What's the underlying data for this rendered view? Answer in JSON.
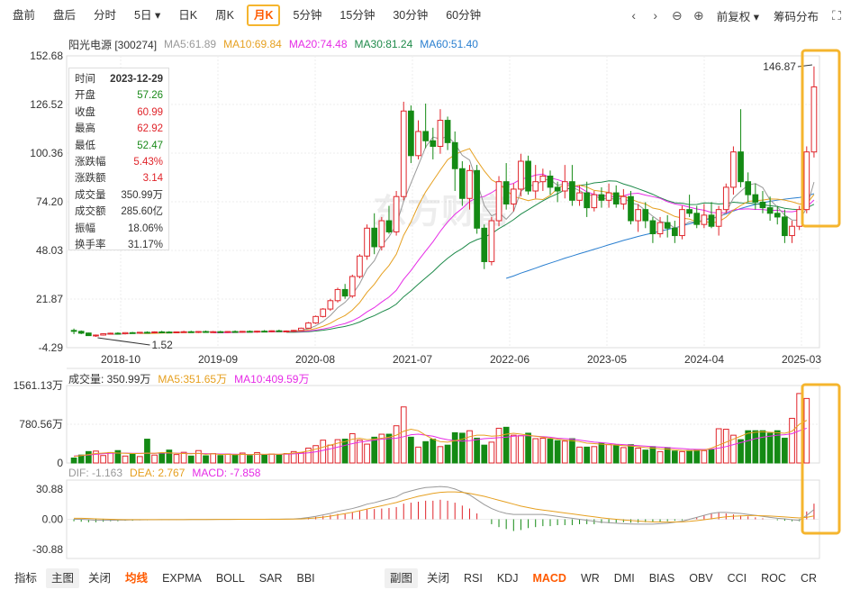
{
  "toolbar": {
    "periods": [
      "盘前",
      "盘后",
      "分时",
      "5日",
      "日K",
      "周K",
      "月K",
      "5分钟",
      "15分钟",
      "30分钟",
      "60分钟"
    ],
    "active_index": 6,
    "dropdown_index": 3,
    "adjust_label": "前复权",
    "chip_label": "筹码分布"
  },
  "legend": {
    "name": "阳光电源 [300274]",
    "ma5": "MA5:61.89",
    "ma10": "MA10:69.84",
    "ma20": "MA20:74.48",
    "ma30": "MA30:81.24",
    "ma60": "MA60:51.40"
  },
  "vol_legend": {
    "vol": "成交量: 350.99万",
    "ma5": "MA5:351.65万",
    "ma10": "MA10:409.59万"
  },
  "macd_legend": {
    "dif": "DIF: -1.163",
    "dea": "DEA: 2.767",
    "macd": "MACD: -7.858"
  },
  "tooltip": [
    {
      "k": "时间",
      "v": "2023-12-29",
      "c": "#333"
    },
    {
      "k": "开盘",
      "v": "57.26",
      "c": "#1a8a1a"
    },
    {
      "k": "收盘",
      "v": "60.99",
      "c": "#e0242a"
    },
    {
      "k": "最高",
      "v": "62.92",
      "c": "#e0242a"
    },
    {
      "k": "最低",
      "v": "52.47",
      "c": "#1a8a1a"
    },
    {
      "k": "涨跌幅",
      "v": "5.43%",
      "c": "#e0242a"
    },
    {
      "k": "涨跌额",
      "v": "3.14",
      "c": "#e0242a"
    },
    {
      "k": "成交量",
      "v": "350.99万",
      "c": "#333"
    },
    {
      "k": "成交额",
      "v": "285.60亿",
      "c": "#333"
    },
    {
      "k": "振幅",
      "v": "18.06%",
      "c": "#333"
    },
    {
      "k": "换手率",
      "v": "31.17%",
      "c": "#333"
    }
  ],
  "watermark": "东方财富",
  "bottom": {
    "left": [
      "指标",
      "主图",
      "关闭",
      "均线",
      "EXPMA",
      "BOLL",
      "SAR",
      "BBI"
    ],
    "right": [
      "副图",
      "关闭",
      "RSI",
      "KDJ",
      "MACD",
      "WR",
      "DMI",
      "BIAS",
      "OBV",
      "CCI",
      "ROC",
      "CR"
    ]
  },
  "colors": {
    "up": "#e0242a",
    "down": "#148a14",
    "ma5": "#999999",
    "ma10": "#e6a020",
    "ma20": "#e62ce6",
    "ma30": "#1e8a4a",
    "ma60": "#2a7fd0",
    "highlight": "#f5b52e"
  },
  "chart_data": {
    "type": "candlestick",
    "price_axis": {
      "labels": [
        "152.68",
        "126.52",
        "100.36",
        "74.20",
        "48.03",
        "21.87",
        "-4.29"
      ],
      "range": [
        -4.29,
        152.68
      ]
    },
    "time_axis": [
      "2018-10",
      "2019-09",
      "2020-08",
      "2021-07",
      "2022-06",
      "2023-05",
      "2024-04",
      "2025-03"
    ],
    "annotations": {
      "max": "146.87",
      "min": "1.52"
    },
    "volume_axis": {
      "labels": [
        "1561.13万",
        "780.56万",
        "0"
      ],
      "max": 1561.13
    },
    "macd_axis": {
      "labels": [
        "30.88",
        "0.00",
        "-30.88"
      ],
      "range": [
        -30.88,
        30.88
      ]
    },
    "candles": [
      [
        5,
        6,
        3,
        4.5
      ],
      [
        4.5,
        5,
        3,
        3.5
      ],
      [
        3.6,
        3.8,
        2,
        2.2
      ],
      [
        2.2,
        2.8,
        1.52,
        2.5
      ],
      [
        2.5,
        3.5,
        2.2,
        3.2
      ],
      [
        3.2,
        3.8,
        2.8,
        3.5
      ],
      [
        3.5,
        4,
        3,
        3.2
      ],
      [
        3.2,
        4,
        2.8,
        3.8
      ],
      [
        3.8,
        4.2,
        3.2,
        3.5
      ],
      [
        3.5,
        4.2,
        3.2,
        4
      ],
      [
        4,
        4.5,
        3.5,
        3.8
      ],
      [
        3.8,
        4.5,
        3.5,
        4.2
      ],
      [
        4.2,
        4.8,
        3.8,
        4.1
      ],
      [
        4.1,
        4.6,
        3.6,
        3.9
      ],
      [
        3.9,
        4.4,
        3.5,
        4.2
      ],
      [
        4.2,
        4.8,
        3.8,
        4.3
      ],
      [
        4.3,
        4.8,
        3.9,
        4
      ],
      [
        4,
        4.6,
        3.6,
        4.4
      ],
      [
        4.4,
        4.9,
        4,
        4.2
      ],
      [
        4.2,
        4.7,
        3.8,
        4.3
      ],
      [
        4.3,
        4.8,
        3.9,
        4.1
      ],
      [
        4.1,
        4.6,
        3.7,
        4.4
      ],
      [
        4.4,
        5,
        4,
        4.2
      ],
      [
        4.2,
        4.7,
        3.8,
        4.5
      ],
      [
        4.5,
        5,
        4,
        4.3
      ],
      [
        4.3,
        4.8,
        3.8,
        4.6
      ],
      [
        4.6,
        5.2,
        4.2,
        4.4
      ],
      [
        4.4,
        5,
        4,
        4.8
      ],
      [
        4.8,
        5.4,
        4.3,
        4.5
      ],
      [
        4.5,
        5,
        4.1,
        4.7
      ],
      [
        4.7,
        5.3,
        4.3,
        5
      ],
      [
        5,
        6.5,
        4.8,
        6.2
      ],
      [
        6.2,
        9.5,
        6,
        9
      ],
      [
        9,
        13,
        8.5,
        12.5
      ],
      [
        12.5,
        17,
        12,
        16.5
      ],
      [
        16.5,
        22,
        15.5,
        21
      ],
      [
        21,
        28,
        20,
        27
      ],
      [
        27,
        30,
        22,
        23.5
      ],
      [
        23.5,
        35,
        22.5,
        34
      ],
      [
        34,
        46,
        33,
        45
      ],
      [
        45,
        62,
        43,
        60
      ],
      [
        60,
        68,
        46,
        50
      ],
      [
        50,
        66,
        48,
        64
      ],
      [
        64,
        72,
        57,
        58
      ],
      [
        58,
        80,
        56,
        77
      ],
      [
        77,
        128,
        75,
        123
      ],
      [
        123,
        126,
        95,
        99
      ],
      [
        99,
        118,
        97,
        112
      ],
      [
        112,
        127,
        103,
        107
      ],
      [
        107,
        114,
        97,
        104
      ],
      [
        104,
        124,
        100,
        118
      ],
      [
        118,
        120,
        102,
        106
      ],
      [
        106,
        112,
        80,
        92
      ],
      [
        92,
        96,
        72,
        76
      ],
      [
        76,
        94,
        70,
        91
      ],
      [
        91,
        94,
        57,
        60
      ],
      [
        60,
        62,
        38,
        42
      ],
      [
        42,
        66,
        40,
        64
      ],
      [
        64,
        88,
        61,
        85
      ],
      [
        85,
        95,
        70,
        73
      ],
      [
        73,
        84,
        69,
        81
      ],
      [
        81,
        100,
        77,
        96
      ],
      [
        96,
        99,
        78,
        80
      ],
      [
        80,
        94,
        76,
        85
      ],
      [
        85,
        92,
        80,
        88
      ],
      [
        88,
        91,
        78,
        82
      ],
      [
        82,
        85,
        74,
        80
      ],
      [
        80,
        94,
        76,
        85
      ],
      [
        85,
        94,
        72,
        75
      ],
      [
        75,
        83,
        72,
        79
      ],
      [
        79,
        85,
        66,
        71
      ],
      [
        71,
        80,
        69,
        78
      ],
      [
        78,
        82,
        71,
        75
      ],
      [
        75,
        84,
        71,
        79
      ],
      [
        79,
        83,
        71,
        73
      ],
      [
        73,
        81,
        70,
        77
      ],
      [
        77,
        80,
        62,
        64
      ],
      [
        64,
        73,
        58,
        70
      ],
      [
        70,
        74,
        60,
        64
      ],
      [
        64,
        66,
        52,
        57
      ],
      [
        57,
        66,
        55,
        63
      ],
      [
        63,
        67,
        55,
        60
      ],
      [
        60,
        64,
        52,
        56
      ],
      [
        56,
        72,
        54,
        70
      ],
      [
        70,
        78,
        66,
        68
      ],
      [
        68,
        72,
        60,
        62
      ],
      [
        62,
        73,
        60,
        67
      ],
      [
        67,
        74,
        60,
        61
      ],
      [
        61,
        72,
        56,
        70
      ],
      [
        70,
        84,
        68,
        82
      ],
      [
        82,
        104,
        78,
        101
      ],
      [
        101,
        124,
        82,
        85
      ],
      [
        85,
        90,
        74,
        78
      ],
      [
        78,
        84,
        70,
        74
      ],
      [
        74,
        80,
        68,
        71
      ],
      [
        71,
        77,
        64,
        68
      ],
      [
        68,
        72,
        62,
        66
      ],
      [
        66,
        70,
        52,
        56
      ],
      [
        56,
        64,
        52,
        61
      ],
      [
        61,
        72,
        59,
        70
      ],
      [
        70,
        104,
        68,
        101
      ],
      [
        101,
        147,
        98,
        136
      ]
    ],
    "volume": [
      100,
      160,
      230,
      240,
      150,
      210,
      250,
      140,
      180,
      130,
      480,
      160,
      185,
      260,
      170,
      215,
      140,
      250,
      145,
      190,
      150,
      180,
      160,
      200,
      150,
      210,
      160,
      180,
      170,
      190,
      230,
      210,
      300,
      350,
      460,
      360,
      470,
      480,
      590,
      460,
      380,
      520,
      580,
      580,
      750,
      1130,
      520,
      320,
      430,
      480,
      330,
      360,
      610,
      600,
      650,
      500,
      360,
      420,
      700,
      720,
      560,
      550,
      600,
      490,
      500,
      480,
      450,
      440,
      490,
      320,
      320,
      330,
      400,
      370,
      360,
      310,
      370,
      300,
      260,
      330,
      230,
      310,
      240,
      230,
      250,
      260,
      250,
      270,
      690,
      680,
      560,
      470,
      650,
      650,
      650,
      600,
      650,
      500,
      900,
      1400,
      1300
    ],
    "vol_ma5": [
      130,
      150,
      170,
      190,
      200,
      210,
      200,
      195,
      190,
      190,
      200,
      195,
      210,
      205,
      195,
      190,
      185,
      195,
      175,
      185,
      170,
      175,
      165,
      175,
      165,
      180,
      175,
      180,
      175,
      185,
      200,
      215,
      240,
      280,
      320,
      360,
      400,
      430,
      480,
      500,
      470,
      480,
      500,
      520,
      560,
      640,
      680,
      650,
      560,
      480,
      430,
      420,
      450,
      480,
      530,
      560,
      560,
      540,
      550,
      580,
      600,
      580,
      560,
      540,
      520,
      500,
      480,
      460,
      450,
      430,
      400,
      390,
      380,
      370,
      360,
      350,
      340,
      330,
      310,
      300,
      285,
      280,
      265,
      255,
      250,
      255,
      260,
      300,
      360,
      420,
      480,
      540,
      600,
      620,
      630,
      620,
      610,
      600,
      640,
      780,
      860
    ],
    "vol_ma10": [
      140,
      150,
      160,
      175,
      185,
      195,
      200,
      200,
      195,
      195,
      195,
      195,
      200,
      200,
      198,
      196,
      194,
      192,
      188,
      186,
      182,
      180,
      176,
      174,
      170,
      172,
      172,
      174,
      174,
      178,
      184,
      192,
      205,
      225,
      255,
      285,
      320,
      355,
      390,
      420,
      440,
      460,
      480,
      490,
      500,
      530,
      570,
      580,
      560,
      540,
      500,
      470,
      450,
      440,
      450,
      470,
      490,
      500,
      510,
      520,
      540,
      550,
      550,
      540,
      530,
      520,
      500,
      490,
      480,
      460,
      440,
      420,
      410,
      395,
      380,
      370,
      360,
      350,
      340,
      330,
      320,
      310,
      300,
      290,
      280,
      275,
      272,
      280,
      300,
      330,
      370,
      410,
      450,
      490,
      520,
      540,
      560,
      570,
      590,
      650,
      700
    ],
    "macd_hist": [
      -2,
      -2.5,
      -3,
      -3,
      -2.5,
      -2,
      -2,
      -1.5,
      -1.5,
      -1,
      -1,
      -0.8,
      -0.8,
      -0.6,
      -0.6,
      -0.5,
      -0.5,
      -0.4,
      -0.4,
      -0.3,
      -0.3,
      -0.3,
      -0.2,
      -0.2,
      -0.2,
      -0.1,
      -0.1,
      0,
      0,
      0.1,
      0.3,
      0.8,
      1.5,
      2.5,
      3.5,
      4.5,
      5.5,
      6,
      7,
      8.5,
      10,
      10.5,
      11,
      11.5,
      12.5,
      16,
      17,
      18,
      19,
      19,
      20,
      19,
      17,
      14,
      11,
      6,
      0,
      -5,
      -8,
      -10,
      -12,
      -11,
      -9,
      -8,
      -7,
      -7,
      -6,
      -6,
      -6,
      -5,
      -5,
      -5,
      -4,
      -4,
      -3.5,
      -3,
      -3.5,
      -3.5,
      -3,
      -3,
      -2.5,
      -2,
      -1.5,
      -1,
      0.5,
      2,
      4,
      6,
      7,
      6,
      5,
      4,
      3,
      2,
      1,
      0,
      -1,
      -1.5,
      -2,
      -2,
      8,
      16
    ],
    "dif": [
      0,
      0,
      -0.5,
      -1,
      -1,
      -1,
      -0.8,
      -0.8,
      -0.6,
      -0.6,
      -0.5,
      -0.5,
      -0.4,
      -0.4,
      -0.3,
      -0.3,
      -0.2,
      -0.2,
      -0.2,
      -0.1,
      -0.1,
      -0.1,
      0,
      0,
      0,
      0,
      0,
      0.1,
      0.1,
      0.2,
      0.4,
      0.9,
      1.8,
      3,
      4.5,
      6,
      8,
      9.5,
      11,
      13,
      15.5,
      17,
      19,
      21,
      23,
      27,
      29,
      31,
      32.5,
      33,
      33.5,
      33,
      31,
      28,
      25,
      20,
      15,
      11,
      8,
      6,
      5,
      5,
      5,
      5,
      5,
      4,
      3,
      2,
      1,
      0,
      -1,
      -2,
      -3,
      -3.5,
      -4,
      -4.5,
      -4.8,
      -5,
      -5,
      -5,
      -4.5,
      -4,
      -3,
      -2,
      0,
      2,
      4,
      6,
      7,
      7,
      6.5,
      6,
      5,
      4,
      3,
      2,
      1,
      0.5,
      -0.5,
      -1,
      4,
      10
    ],
    "dea": [
      1,
      1,
      0.8,
      0.5,
      0.2,
      0,
      -0.2,
      -0.3,
      -0.4,
      -0.4,
      -0.4,
      -0.4,
      -0.4,
      -0.3,
      -0.3,
      -0.3,
      -0.2,
      -0.2,
      -0.2,
      -0.2,
      -0.1,
      -0.1,
      -0.1,
      0,
      0,
      0,
      0,
      0,
      0,
      0.1,
      0.2,
      0.4,
      0.8,
      1.4,
      2.2,
      3.2,
      4.5,
      5.8,
      7.2,
      8.8,
      10.5,
      12.2,
      13.8,
      15.5,
      17.2,
      19.5,
      21.5,
      23.5,
      25,
      26.5,
      27.5,
      28,
      28,
      27.5,
      26.5,
      25,
      23.5,
      21.5,
      19.5,
      17.5,
      15.5,
      13.5,
      12,
      10.5,
      9.5,
      8.5,
      7.5,
      6.5,
      5.5,
      4.5,
      3.5,
      2.5,
      1.5,
      0.7,
      0,
      -0.7,
      -1.3,
      -1.8,
      -2.3,
      -2.6,
      -2.8,
      -2.9,
      -2.8,
      -2.6,
      -2.1,
      -1.4,
      -0.5,
      0.6,
      1.6,
      2.5,
      3.1,
      3.5,
      3.8,
      3.8,
      3.6,
      3.3,
      2.9,
      2.4,
      1.9,
      1.4,
      2,
      3.5
    ]
  }
}
